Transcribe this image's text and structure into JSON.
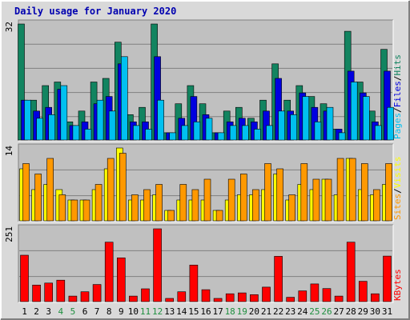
{
  "title": "Daily usage for January 2020",
  "colors": {
    "background": "#d9d9d9",
    "panel": "#c0c0c0",
    "hits": "#128460",
    "files": "#0000e0",
    "pages": "#00c0f0",
    "visits": "#ffff00",
    "sites": "#ff9900",
    "kbytes": "#ff0000",
    "title": "#0000b0",
    "weekend_label": "#1f8f3f",
    "weekday_label": "#000000"
  },
  "chart_data": [
    {
      "type": "bar",
      "panel": "hits_files_pages",
      "ymax_label": "32",
      "ylim": [
        0,
        32
      ],
      "legend": [
        {
          "name": "Pages",
          "separator": "/"
        },
        {
          "name": "Files",
          "separator": "/"
        },
        {
          "name": "Hits",
          "separator": ""
        }
      ],
      "categories": [
        "1",
        "2",
        "3",
        "4",
        "5",
        "6",
        "7",
        "8",
        "9",
        "10",
        "11",
        "12",
        "13",
        "14",
        "15",
        "16",
        "17",
        "18",
        "19",
        "20",
        "21",
        "22",
        "23",
        "24",
        "25",
        "26",
        "27",
        "28",
        "29",
        "30",
        "31"
      ],
      "series": [
        {
          "name": "Hits",
          "values": [
            32,
            11,
            15,
            16,
            5,
            8,
            16,
            17,
            27,
            7,
            9,
            32,
            2,
            10,
            15,
            10,
            2,
            8,
            9,
            6,
            11,
            21,
            11,
            15,
            12,
            10,
            3,
            30,
            16,
            8,
            25
          ]
        },
        {
          "name": "Files",
          "values": [
            11,
            8,
            9,
            14,
            4,
            5,
            10,
            12,
            21,
            5,
            5,
            23,
            2,
            6,
            12,
            7,
            2,
            5,
            6,
            5,
            8,
            17,
            8,
            13,
            9,
            8,
            3,
            19,
            13,
            5,
            19
          ]
        },
        {
          "name": "Pages",
          "values": [
            11,
            6,
            7,
            15,
            4,
            3,
            11,
            8,
            23,
            4,
            3,
            11,
            2,
            4,
            5,
            6,
            2,
            4,
            4,
            3,
            4,
            8,
            7,
            12,
            5,
            9,
            2,
            16,
            12,
            4,
            9
          ]
        }
      ]
    },
    {
      "type": "bar",
      "panel": "visits_sites",
      "ymax_label": "14",
      "ylim": [
        0,
        14
      ],
      "legend": [
        {
          "name": "Sites",
          "separator": "/"
        },
        {
          "name": "Visits",
          "separator": ""
        }
      ],
      "categories": [
        "1",
        "2",
        "3",
        "4",
        "5",
        "6",
        "7",
        "8",
        "9",
        "10",
        "11",
        "12",
        "13",
        "14",
        "15",
        "16",
        "17",
        "18",
        "19",
        "20",
        "21",
        "22",
        "23",
        "24",
        "25",
        "26",
        "27",
        "28",
        "29",
        "30",
        "31"
      ],
      "series": [
        {
          "name": "Visits",
          "values": [
            10,
            6,
            7,
            6,
            4,
            4,
            6,
            10,
            14,
            4,
            4,
            5,
            2,
            4,
            4,
            4,
            2,
            4,
            5,
            5,
            6,
            9,
            4,
            7,
            6,
            8,
            5,
            12,
            6,
            5,
            7
          ]
        },
        {
          "name": "Sites",
          "values": [
            11,
            9,
            12,
            5,
            4,
            4,
            7,
            12,
            13,
            5,
            6,
            7,
            2,
            7,
            6,
            8,
            2,
            8,
            9,
            6,
            11,
            10,
            5,
            11,
            8,
            8,
            12,
            12,
            11,
            6,
            11
          ]
        }
      ]
    },
    {
      "type": "bar",
      "panel": "kbytes",
      "ymax_label": "251",
      "ylim": [
        0,
        251
      ],
      "legend": [
        {
          "name": "KBytes",
          "separator": ""
        }
      ],
      "categories": [
        "1",
        "2",
        "3",
        "4",
        "5",
        "6",
        "7",
        "8",
        "9",
        "10",
        "11",
        "12",
        "13",
        "14",
        "15",
        "16",
        "17",
        "18",
        "19",
        "20",
        "21",
        "22",
        "23",
        "24",
        "25",
        "26",
        "27",
        "28",
        "29",
        "30",
        "31"
      ],
      "series": [
        {
          "name": "KBytes",
          "values": [
            160,
            57,
            64,
            74,
            19,
            34,
            59,
            205,
            151,
            19,
            44,
            251,
            11,
            34,
            126,
            41,
            11,
            27,
            30,
            24,
            50,
            156,
            15,
            37,
            61,
            45,
            19,
            205,
            70,
            27,
            157
          ]
        }
      ]
    }
  ],
  "x_labels": [
    {
      "text": "1",
      "weekend": false
    },
    {
      "text": "2",
      "weekend": false
    },
    {
      "text": "3",
      "weekend": false
    },
    {
      "text": "4",
      "weekend": true
    },
    {
      "text": "5",
      "weekend": true
    },
    {
      "text": "6",
      "weekend": false
    },
    {
      "text": "7",
      "weekend": false
    },
    {
      "text": "8",
      "weekend": false
    },
    {
      "text": "9",
      "weekend": false
    },
    {
      "text": "10",
      "weekend": false
    },
    {
      "text": "11",
      "weekend": true
    },
    {
      "text": "12",
      "weekend": true
    },
    {
      "text": "13",
      "weekend": false
    },
    {
      "text": "14",
      "weekend": false
    },
    {
      "text": "15",
      "weekend": false
    },
    {
      "text": "16",
      "weekend": false
    },
    {
      "text": "17",
      "weekend": false
    },
    {
      "text": "18",
      "weekend": true
    },
    {
      "text": "19",
      "weekend": true
    },
    {
      "text": "20",
      "weekend": false
    },
    {
      "text": "21",
      "weekend": false
    },
    {
      "text": "22",
      "weekend": false
    },
    {
      "text": "23",
      "weekend": false
    },
    {
      "text": "24",
      "weekend": false
    },
    {
      "text": "25",
      "weekend": true
    },
    {
      "text": "26",
      "weekend": true
    },
    {
      "text": "27",
      "weekend": false
    },
    {
      "text": "28",
      "weekend": false
    },
    {
      "text": "29",
      "weekend": false
    },
    {
      "text": "30",
      "weekend": false
    },
    {
      "text": "31",
      "weekend": false
    }
  ]
}
